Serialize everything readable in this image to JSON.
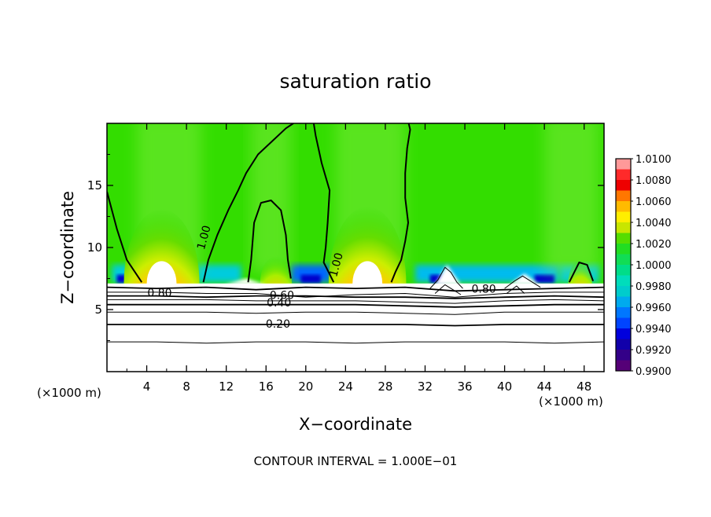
{
  "chart_data": {
    "type": "heatmap",
    "title": "saturation ratio",
    "xlabel": "X−coordinate",
    "ylabel": "Z−coordinate",
    "x_unit_left": "(×1000 m)",
    "x_unit_right": "(×1000 m)",
    "footer": "CONTOUR INTERVAL = 1.000E−01",
    "xlim": [
      0,
      50
    ],
    "ylim": [
      0,
      20
    ],
    "x_ticks": [
      4,
      8,
      12,
      16,
      20,
      24,
      28,
      32,
      36,
      40,
      44,
      48
    ],
    "y_ticks": [
      5,
      10,
      15
    ],
    "colorbar": {
      "labels": [
        "1.0100",
        "1.0080",
        "1.0060",
        "1.0040",
        "1.0020",
        "1.0000",
        "0.9980",
        "0.9960",
        "0.9940",
        "0.9920",
        "0.9900"
      ],
      "colors": [
        "#ff9999",
        "#ff2a2a",
        "#ee0000",
        "#ff7700",
        "#ffbb00",
        "#ffee00",
        "#c8e600",
        "#55dd00",
        "#22dd22",
        "#11dd55",
        "#00dd88",
        "#00ddbb",
        "#00cccc",
        "#00aaee",
        "#0077ff",
        "#0044ff",
        "#0000dd",
        "#1100aa",
        "#330088",
        "#550077"
      ]
    },
    "contour_labels": [
      {
        "text": "1.00",
        "x": 9.8,
        "z": 10.8
      },
      {
        "text": "1.00",
        "x": 23.1,
        "z": 8.6
      },
      {
        "text": "0.80",
        "x": 5.3,
        "z": 6.3
      },
      {
        "text": "0.60",
        "x": 17.6,
        "z": 6.1
      },
      {
        "text": "0.40",
        "x": 17.3,
        "z": 5.5
      },
      {
        "text": "0.20",
        "x": 17.2,
        "z": 3.8
      },
      {
        "text": "0.80",
        "x": 37.9,
        "z": 6.6
      }
    ],
    "contour_lines_s1": [
      {
        "x": [
          0.0,
          1.0,
          2.0,
          3.5
        ],
        "z": [
          14.5,
          11.5,
          9.0,
          7.2
        ]
      },
      {
        "x": [
          9.7,
          10.2,
          11.1,
          12.2,
          13.2,
          14.0,
          15.2,
          16.8,
          18.0,
          19.7,
          20.5,
          20.7,
          21.0
        ],
        "z": [
          7.2,
          9.0,
          11.0,
          13.0,
          14.6,
          16.0,
          17.5,
          18.7,
          19.6,
          20.5,
          20.5,
          20.5,
          20.5
        ]
      },
      {
        "x": [
          14.2,
          14.5,
          14.8,
          15.5,
          16.5,
          17.5,
          18.0,
          18.2,
          18.5
        ],
        "z": [
          7.2,
          9.0,
          12.0,
          13.6,
          13.8,
          13.0,
          11.0,
          9.0,
          7.5
        ]
      },
      {
        "x": [
          20.7,
          21.0,
          21.6,
          22.4,
          22.2,
          22.0,
          21.8,
          22.3,
          22.8
        ],
        "z": [
          20.5,
          19.0,
          16.8,
          14.6,
          12.0,
          10.0,
          8.8,
          8.0,
          7.2
        ]
      },
      {
        "x": [
          30.2,
          30.5,
          30.2,
          30.0,
          30.0,
          30.3,
          30.0,
          29.6,
          29.0,
          28.6
        ],
        "z": [
          20.5,
          19.5,
          18.0,
          16.0,
          14.0,
          12.0,
          10.5,
          9.0,
          8.0,
          7.2
        ]
      },
      {
        "x": [
          46.5,
          47.0,
          47.5,
          48.3,
          48.9
        ],
        "z": [
          7.2,
          8.0,
          8.8,
          8.6,
          7.3
        ]
      }
    ],
    "contour_lines_strat": [
      {
        "level": "0.80",
        "z": [
          6.8,
          6.7,
          6.8,
          6.6,
          6.8,
          6.7,
          6.8,
          6.5,
          6.6,
          6.7,
          6.8
        ]
      },
      {
        "level": "0.70",
        "z": [
          6.4,
          6.4,
          6.3,
          6.3,
          6.0,
          6.2,
          6.3,
          6.0,
          6.3,
          6.4,
          6.4
        ]
      },
      {
        "level": "0.60",
        "z": [
          6.1,
          6.1,
          6.0,
          6.1,
          6.1,
          6.0,
          6.0,
          5.9,
          6.0,
          6.1,
          6.0
        ]
      },
      {
        "level": "0.50",
        "z": [
          5.8,
          5.8,
          5.8,
          5.7,
          5.7,
          5.7,
          5.6,
          5.5,
          5.7,
          5.8,
          5.7
        ]
      },
      {
        "level": "0.40",
        "z": [
          5.4,
          5.4,
          5.4,
          5.4,
          5.4,
          5.4,
          5.3,
          5.2,
          5.3,
          5.4,
          5.4
        ]
      },
      {
        "level": "0.30",
        "z": [
          4.8,
          4.8,
          4.8,
          4.7,
          4.8,
          4.8,
          4.7,
          4.6,
          4.8,
          4.8,
          4.8
        ]
      },
      {
        "level": "0.20",
        "z": [
          3.8,
          3.8,
          3.8,
          3.8,
          3.8,
          3.8,
          3.8,
          3.7,
          3.8,
          3.8,
          3.8
        ]
      },
      {
        "level": "0.10",
        "z": [
          2.4,
          2.4,
          2.3,
          2.4,
          2.4,
          2.3,
          2.4,
          2.4,
          2.4,
          2.3,
          2.4
        ]
      }
    ],
    "grid": false
  }
}
